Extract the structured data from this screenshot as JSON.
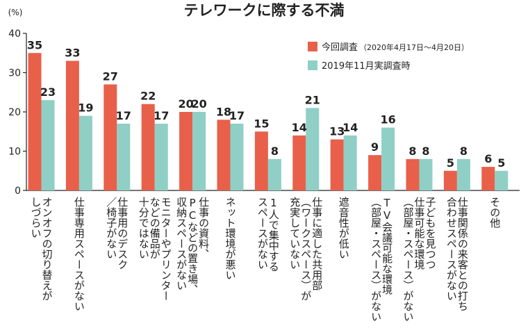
{
  "chart_data": {
    "type": "bar",
    "title": "テレワークに際する不満",
    "unit_label": "(%)",
    "ylim": [
      0,
      40
    ],
    "yticks": [
      "0",
      "10",
      "20",
      "30",
      "40"
    ],
    "grid": false,
    "legend_position": "top-right",
    "categories": [
      [
        "オンオフの切り替えが",
        "しづらい"
      ],
      [
        "仕事専用スペースがない"
      ],
      [
        "仕事用のデスク",
        "／椅子がない"
      ],
      [
        "モニターやプリンター",
        "などの備品が",
        "十分ではない"
      ],
      [
        "仕事の資料、",
        "PCなどの置き場、",
        "収納スペースがない"
      ],
      [
        "ネット環境が悪い"
      ],
      [
        "1人で集中する",
        "スペースがない"
      ],
      [
        "仕事に適した共用部",
        "（ワークスペース）が",
        "充実していない"
      ],
      [
        "遮音性が低い"
      ],
      [
        "TV会議可能な環境",
        "（部屋・スペース）がない"
      ],
      [
        "子どもを見つつ",
        "仕事可能な環境",
        "（部屋・スペース）がない"
      ],
      [
        "仕事関係の来客との打ち",
        "合わせスペースがない"
      ],
      [
        "その他"
      ]
    ],
    "series": [
      {
        "name": "今回調査",
        "name_note": "（2020年4月17日〜4月20日）",
        "color": "#E8604A",
        "values": [
          35,
          33,
          27,
          22,
          20,
          18,
          15,
          14,
          13,
          9,
          8,
          5,
          6
        ]
      },
      {
        "name": "2019年11月実調査時",
        "color": "#8FCFC6",
        "values": [
          23,
          19,
          17,
          17,
          20,
          17,
          8,
          21,
          14,
          16,
          8,
          8,
          5
        ]
      }
    ]
  }
}
